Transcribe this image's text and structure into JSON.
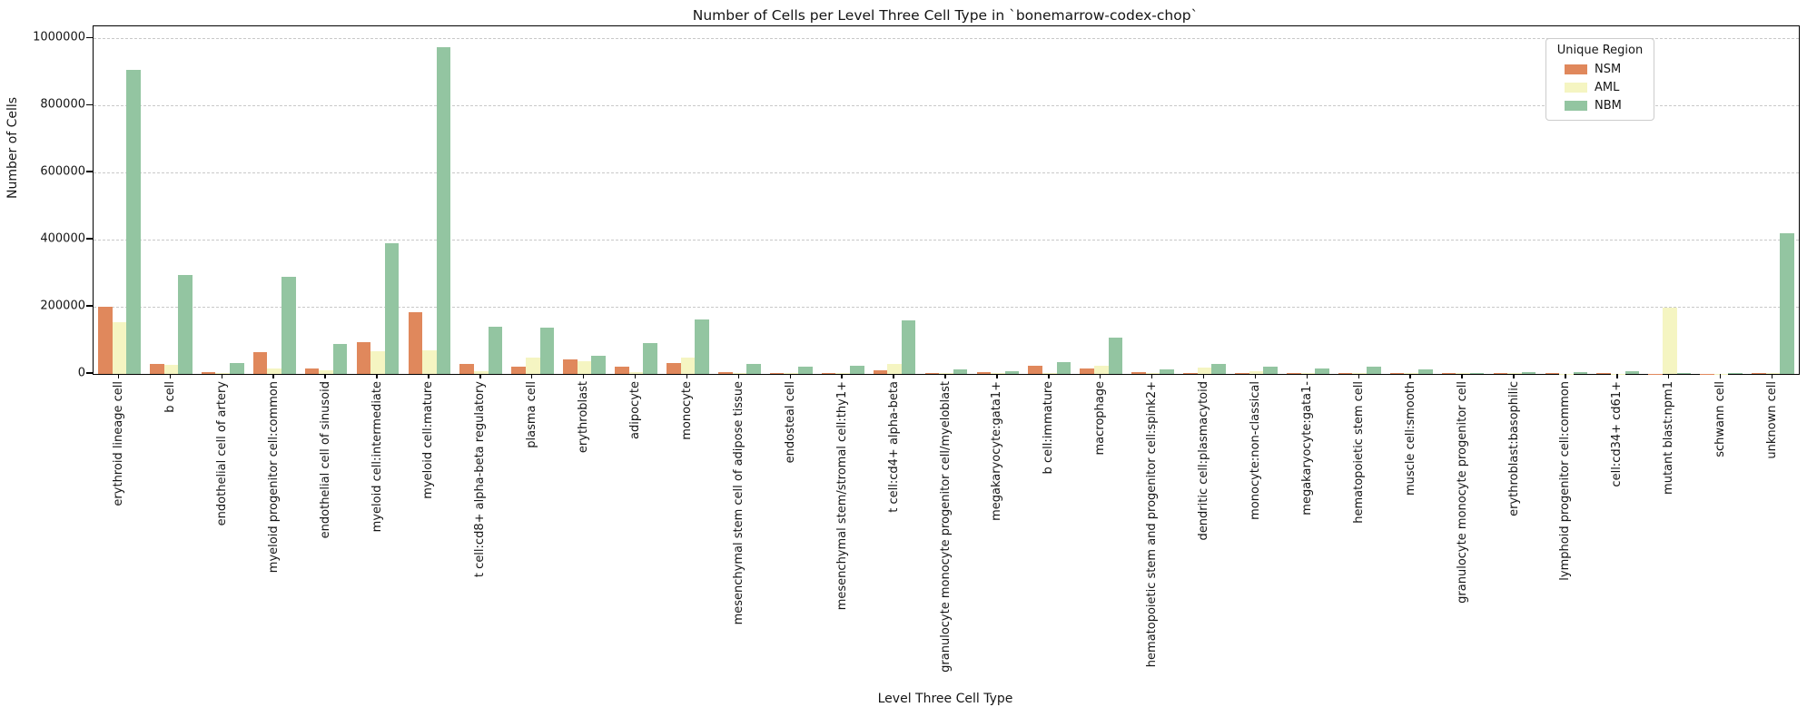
{
  "chart_data": {
    "type": "bar",
    "title": "Number of Cells per Level Three Cell Type in `bonemarrow-codex-chop`",
    "xlabel": "Level Three Cell Type",
    "ylabel": "Number of Cells",
    "legend_title": "Unique Region",
    "legend_position": "upper right",
    "grid": "horizontal dashed",
    "ylim": [
      0,
      1036000
    ],
    "yticks": [
      0,
      200000,
      400000,
      600000,
      800000,
      1000000
    ],
    "categories": [
      "erythroid lineage cell",
      "b cell",
      "endothelial cell of artery",
      "myeloid progenitor cell:common",
      "endothelial cell of sinusoid",
      "myeloid cell:intermediate",
      "myeloid cell:mature",
      "t cell:cd8+ alpha-beta regulatory",
      "plasma cell",
      "erythroblast",
      "adipocyte",
      "monocyte",
      "mesenchymal stem cell of adipose tissue",
      "endosteal cell",
      "mesenchymal stem/stromal cell:thy1+",
      "t cell:cd4+ alpha-beta",
      "granulocyte monocyte progenitor cell/myeloblast",
      "megakaryocyte:gata1+",
      "b cell:immature",
      "macrophage",
      "hematopoietic stem and progenitor cell:spink2+",
      "dendritic cell:plasmacytoid",
      "monocyte:non-classical",
      "megakaryocyte:gata1-",
      "hematopoietic stem cell",
      "muscle cell:smooth",
      "granulocyte monocyte progenitor cell",
      "erythroblast:basophilic",
      "lymphoid progenitor cell:common",
      "cell:cd34+ cd61+",
      "mutant blast:npm1",
      "schwann cell",
      "unknown cell"
    ],
    "series": [
      {
        "name": "NSM",
        "color": "#e0885c",
        "values": [
          200000,
          30000,
          5000,
          65000,
          15000,
          95000,
          183000,
          30000,
          22000,
          42000,
          22000,
          32000,
          6000,
          3000,
          4000,
          12000,
          4000,
          6000,
          25000,
          16000,
          5000,
          4000,
          3000,
          3000,
          4000,
          3000,
          2000,
          2000,
          1500,
          1500,
          1000,
          500,
          2000
        ]
      },
      {
        "name": "AML",
        "color": "#f5f5c2",
        "values": [
          155000,
          27000,
          3000,
          15000,
          10000,
          68000,
          70000,
          8000,
          50000,
          38000,
          5000,
          48000,
          3000,
          2000,
          2000,
          30000,
          3000,
          4000,
          3000,
          25000,
          3000,
          18000,
          8000,
          2000,
          3000,
          2000,
          1500,
          1500,
          1000,
          1000,
          198000,
          500,
          1500
        ]
      },
      {
        "name": "NBM",
        "color": "#93c5a1",
        "values": [
          905000,
          295000,
          32000,
          290000,
          88000,
          390000,
          975000,
          142000,
          138000,
          55000,
          92000,
          162000,
          30000,
          22000,
          24000,
          160000,
          13000,
          9000,
          34000,
          108000,
          13000,
          29000,
          23000,
          16000,
          23000,
          14000,
          3000,
          6000,
          5000,
          8000,
          2000,
          1500,
          420000
        ]
      }
    ],
    "colors": {
      "grid": "#c9c9c9",
      "spine": "#000000",
      "text": "#151515",
      "background": "#ffffff"
    }
  }
}
